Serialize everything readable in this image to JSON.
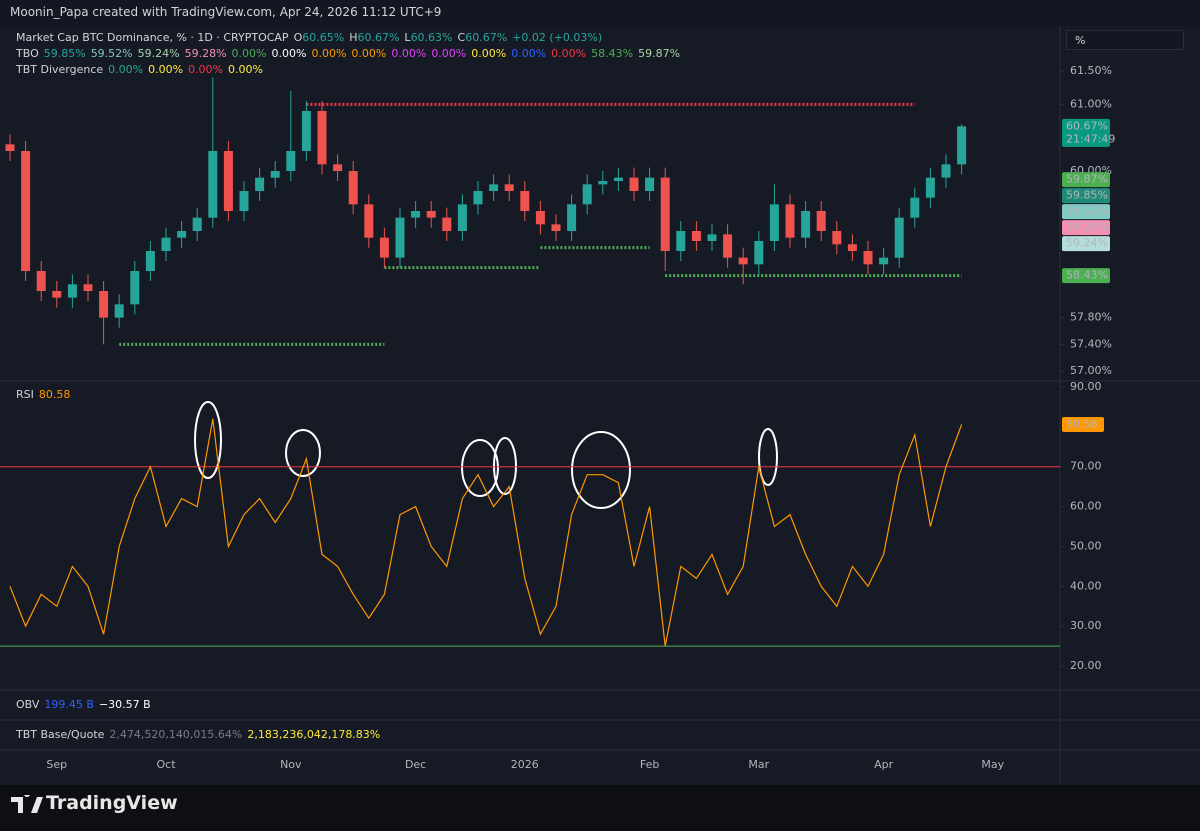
{
  "header": "Moonin_Papa created with TradingView.com, Apr 24, 2026 11:12 UTC+9",
  "unit_button": "%",
  "brand": "TradingView",
  "chart_data": [
    {
      "type": "candlestick",
      "legend": [
        [
          {
            "text": "Market Cap BTC Dominance, % · 1D · CRYPTOCAP",
            "color": "#d1d4dc"
          },
          {
            "key": "O",
            "text": "60.65%",
            "color": "#26a69a"
          },
          {
            "key": "H",
            "text": "60.67%",
            "color": "#26a69a"
          },
          {
            "key": "L",
            "text": "60.63%",
            "color": "#26a69a"
          },
          {
            "key": "C",
            "text": "60.67%",
            "color": "#26a69a"
          },
          {
            "text": "+0.02 (+0.03%)",
            "color": "#26a69a"
          }
        ],
        [
          {
            "text": "TBO",
            "color": "#d1d4dc"
          },
          {
            "text": "59.85%",
            "color": "#26a69a"
          },
          {
            "text": "59.52%",
            "color": "#80cbc4"
          },
          {
            "text": "59.24%",
            "color": "#a5d6a7"
          },
          {
            "text": "59.28%",
            "color": "#f48fb1"
          },
          {
            "text": "0.00%",
            "color": "#4caf50"
          },
          {
            "text": "0.00%",
            "color": "#ffffff"
          },
          {
            "text": "0.00%",
            "color": "#ff9800"
          },
          {
            "text": "0.00%",
            "color": "#ff9800"
          },
          {
            "text": "0.00%",
            "color": "#e040fb"
          },
          {
            "text": "0.00%",
            "color": "#e040fb"
          },
          {
            "text": "0.00%",
            "color": "#ffeb3b"
          },
          {
            "text": "0.00%",
            "color": "#2962ff"
          },
          {
            "text": "0.00%",
            "color": "#f23645"
          },
          {
            "text": "58.43%",
            "color": "#4caf50"
          },
          {
            "text": "59.87%",
            "color": "#a5d6a7"
          }
        ],
        [
          {
            "text": "TBT Divergence",
            "color": "#d1d4dc"
          },
          {
            "text": "0.00%",
            "color": "#26a69a"
          },
          {
            "text": "0.00%",
            "color": "#ffeb3b"
          },
          {
            "text": "0.00%",
            "color": "#f23645"
          },
          {
            "text": "0.00%",
            "color": "#ffeb3b"
          }
        ]
      ],
      "categories": [
        null,
        null,
        null,
        "Sep",
        null,
        null,
        null,
        null,
        null,
        null,
        "Oct",
        null,
        null,
        null,
        null,
        null,
        null,
        null,
        "Nov",
        null,
        null,
        null,
        null,
        null,
        null,
        null,
        "Dec",
        null,
        null,
        null,
        null,
        null,
        null,
        "2026",
        null,
        null,
        null,
        null,
        null,
        null,
        null,
        "Feb",
        null,
        null,
        null,
        null,
        null,
        null,
        "Mar",
        null,
        null,
        null,
        null,
        null,
        null,
        null,
        "Apr",
        null,
        null,
        null,
        null,
        null,
        null,
        "May"
      ],
      "open": [
        60.4,
        60.3,
        58.5,
        58.2,
        58.1,
        58.3,
        58.2,
        57.8,
        58.0,
        58.5,
        58.8,
        59.0,
        59.1,
        59.3,
        60.3,
        59.4,
        59.7,
        59.9,
        60.0,
        60.3,
        60.9,
        60.1,
        60.0,
        59.5,
        59.0,
        58.7,
        59.3,
        59.4,
        59.3,
        59.1,
        59.5,
        59.7,
        59.8,
        59.7,
        59.4,
        59.2,
        59.1,
        59.5,
        59.8,
        59.85,
        59.9,
        59.7,
        59.9,
        58.8,
        59.1,
        58.95,
        59.05,
        58.7,
        58.6,
        58.95,
        59.5,
        59.0,
        59.4,
        59.1,
        58.9,
        58.8,
        58.6,
        58.7,
        59.3,
        59.6,
        59.9,
        60.1,
        null,
        null
      ],
      "high": [
        60.55,
        60.45,
        58.65,
        58.35,
        58.45,
        58.45,
        58.35,
        58.15,
        58.65,
        58.95,
        59.15,
        59.25,
        59.45,
        61.4,
        60.45,
        59.85,
        60.05,
        60.15,
        61.2,
        61.05,
        61.05,
        60.25,
        60.15,
        59.65,
        59.15,
        59.45,
        59.55,
        59.55,
        59.45,
        59.65,
        59.85,
        59.95,
        59.95,
        59.85,
        59.55,
        59.35,
        59.65,
        59.95,
        60.0,
        60.05,
        60.05,
        60.05,
        60.05,
        59.25,
        59.25,
        59.2,
        59.2,
        58.85,
        59.1,
        59.8,
        59.65,
        59.55,
        59.55,
        59.25,
        59.05,
        58.95,
        58.85,
        59.45,
        59.75,
        60.05,
        60.25,
        60.7,
        null,
        null
      ],
      "low": [
        60.15,
        58.35,
        58.05,
        57.95,
        57.95,
        58.05,
        57.4,
        57.65,
        57.85,
        58.35,
        58.65,
        58.85,
        58.95,
        59.15,
        59.25,
        59.25,
        59.55,
        59.75,
        59.85,
        60.15,
        59.95,
        59.85,
        59.35,
        58.85,
        58.55,
        58.55,
        59.15,
        59.15,
        58.95,
        58.95,
        59.35,
        59.55,
        59.55,
        59.25,
        59.05,
        58.95,
        58.95,
        59.35,
        59.65,
        59.7,
        59.55,
        59.55,
        58.5,
        58.65,
        58.8,
        58.8,
        58.55,
        58.3,
        58.45,
        58.8,
        58.85,
        58.85,
        58.95,
        58.75,
        58.65,
        58.45,
        58.45,
        58.55,
        59.15,
        59.45,
        59.75,
        59.95,
        null,
        null
      ],
      "close": [
        60.3,
        58.5,
        58.2,
        58.1,
        58.3,
        58.2,
        57.8,
        58.0,
        58.5,
        58.8,
        59.0,
        59.1,
        59.3,
        60.3,
        59.4,
        59.7,
        59.9,
        60.0,
        60.3,
        60.9,
        60.1,
        60.0,
        59.5,
        59.0,
        58.7,
        59.3,
        59.4,
        59.3,
        59.1,
        59.5,
        59.7,
        59.8,
        59.7,
        59.4,
        59.2,
        59.1,
        59.5,
        59.8,
        59.85,
        59.9,
        59.7,
        59.9,
        58.8,
        59.1,
        58.95,
        59.05,
        58.7,
        58.6,
        58.95,
        59.5,
        59.0,
        59.4,
        59.1,
        58.9,
        58.8,
        58.6,
        58.7,
        59.3,
        59.6,
        59.9,
        60.1,
        60.67,
        null,
        null
      ],
      "up_color": "#26a69a",
      "down_color": "#ef5350",
      "ylim": [
        56.865,
        62.115
      ],
      "yticks": [
        {
          "value": 61.5,
          "label": "61.50%"
        },
        {
          "value": 61.0,
          "label": "61.00%"
        },
        {
          "value": 60.0,
          "label": "60.00%"
        },
        {
          "value": 57.8,
          "label": "57.80%"
        },
        {
          "value": 57.4,
          "label": "57.40%"
        },
        {
          "value": 57.0,
          "label": "57.00%"
        }
      ],
      "levels": [
        {
          "value": 61.0,
          "start": 19,
          "end": 58,
          "color": "#f23645"
        },
        {
          "value": 57.4,
          "start": 7,
          "end": 24,
          "color": "#4caf50"
        },
        {
          "value": 58.55,
          "start": 24,
          "end": 34,
          "color": "#4caf50"
        },
        {
          "value": 58.85,
          "start": 34,
          "end": 41,
          "color": "#4caf50"
        },
        {
          "value": 58.43,
          "start": 42,
          "end": 61,
          "color": "#4caf50"
        }
      ],
      "price_labels": [
        {
          "value": 60.67,
          "label": "60.67%",
          "sublabel": "21:47:49",
          "color": "#089981"
        },
        {
          "value": 59.87,
          "label": "59.87%",
          "color": "#4caf50"
        },
        {
          "value": 59.85,
          "label": "59.85%",
          "color": "#1e8c78"
        },
        {
          "value": 59.52,
          "label": "59.52%",
          "color": "#80cbc4"
        },
        {
          "value": 59.28,
          "label": "59.28%",
          "color": "#f48fb1"
        },
        {
          "value": 59.24,
          "label": "59.24%",
          "color": "#b2dfdb"
        },
        {
          "value": 58.43,
          "label": "58.43%",
          "color": "#4caf50"
        }
      ]
    },
    {
      "type": "line",
      "name": "RSI",
      "last_label": "80.58",
      "color": "#ff9800",
      "values": [
        40,
        30,
        38,
        35,
        45,
        40,
        28,
        50,
        62,
        70,
        55,
        62,
        60,
        82,
        50,
        58,
        62,
        56,
        62,
        72,
        48,
        45,
        38,
        32,
        38,
        58,
        60,
        50,
        45,
        62,
        68,
        60,
        65,
        42,
        28,
        35,
        58,
        68,
        68,
        66,
        45,
        60,
        25,
        45,
        42,
        48,
        38,
        45,
        70,
        55,
        58,
        48,
        40,
        35,
        45,
        40,
        48,
        68,
        78,
        55,
        70,
        80.58,
        null,
        null
      ],
      "ylim": [
        14,
        91.25
      ],
      "yticks": [
        {
          "value": 90,
          "label": "90.00"
        },
        {
          "value": 80,
          "label": "80.00"
        },
        {
          "value": 70,
          "label": "70.00"
        },
        {
          "value": 60,
          "label": "60.00"
        },
        {
          "value": 50,
          "label": "50.00"
        },
        {
          "value": 40,
          "label": "40.00"
        },
        {
          "value": 30,
          "label": "30.00"
        },
        {
          "value": 20,
          "label": "20.00"
        }
      ],
      "levels": [
        {
          "value": 70,
          "color": "#f23645"
        },
        {
          "value": 25,
          "color": "#4caf50"
        }
      ]
    }
  ],
  "panes": [
    {
      "segments": [
        {
          "text": "OBV",
          "color": "#d1d4dc"
        },
        {
          "text": "199.45 B",
          "color": "#2962ff"
        },
        {
          "text": "−30.57 B",
          "color": "#ffffff"
        }
      ]
    },
    {
      "segments": [
        {
          "text": "TBT Base/Quote",
          "color": "#d1d4dc"
        },
        {
          "text": "2,474,520,140,015.64%",
          "color": "#787b86"
        },
        {
          "text": "2,183,236,042,178.83%",
          "color": "#ffeb3b"
        }
      ]
    }
  ]
}
